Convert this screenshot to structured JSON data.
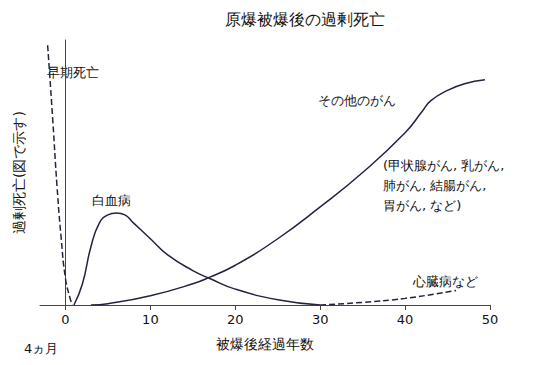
{
  "chart_data": {
    "type": "line",
    "title": "原爆被爆後の過剰死亡",
    "x_label": "被爆後経過年数",
    "y_label": "過剰死亡(図で示す)",
    "xlim": [
      -3,
      50
    ],
    "xticks": [
      0,
      10,
      20,
      30,
      40,
      50
    ],
    "ylim": [
      0,
      100
    ],
    "yticks": [],
    "grid": false,
    "tick_labels": "x",
    "color": "#23233f",
    "annotations": [
      "早期死亡",
      "白血病",
      "その他のがん",
      "(甲状腺がん, 乳がん,\n肺がん, 結腸がん,\n胃がん, など)",
      "心臓病など",
      "4ヵ月"
    ],
    "series": [
      {
        "name": "早期死亡",
        "line_style": "dashed",
        "x": [
          -2.1,
          -1.5,
          -1,
          -0.5,
          0,
          0.5,
          0.8
        ],
        "values": [
          98,
          70,
          45,
          25,
          10,
          3,
          0
        ]
      },
      {
        "name": "白血病",
        "line_style": "solid",
        "x": [
          1,
          2,
          3,
          4,
          5,
          6,
          7,
          8,
          10,
          12,
          15,
          17,
          20,
          25,
          30
        ],
        "values": [
          0,
          8,
          22,
          31,
          34,
          34.7,
          34,
          31,
          25,
          19,
          13,
          10,
          6,
          2,
          0
        ]
      },
      {
        "name": "その他のがん",
        "line_style": "solid",
        "x": [
          3,
          5,
          10,
          15,
          17,
          20,
          25,
          30,
          35,
          40,
          42,
          43,
          45,
          47,
          49.4
        ],
        "values": [
          0,
          0.5,
          3.5,
          8,
          10.5,
          15,
          25,
          37,
          50,
          65,
          73,
          77,
          81,
          83.5,
          85
        ]
      },
      {
        "name": "心臓病など",
        "line_style": "dashed",
        "x": [
          30,
          35,
          40,
          46
        ],
        "values": [
          0,
          1,
          2.5,
          5.5
        ]
      }
    ]
  }
}
